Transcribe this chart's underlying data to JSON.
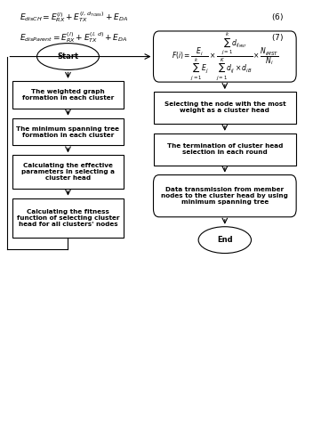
{
  "bg_color": "#ffffff",
  "eq1_text": "$E_{disCH} = E_{RX}^{(l)} + E_{TX}^{(l,\\, d_{TOBS})} + E_{DA}$",
  "eq1_num": "$(6)$",
  "eq2_text": "$E_{disParent} = E_{RX}^{(l)} + E_{TX}^{(l,\\, d)} + E_{DA}$",
  "eq2_num": "$(7)$",
  "start_label": "Start",
  "end_label": "End",
  "left_box1": "The weighted graph\nformation in each cluster",
  "left_box2": "The minimum spanning tree\nformation in each cluster",
  "left_box3": "Calculating the effective\nparameters in selecting a\ncluster head",
  "left_box4": "Calculating the fitness\nfunction of selecting cluster\nhead for all clusters' nodes",
  "formula": "$F(i) = \\dfrac{E_i}{\\sum_{j=1}^{k}E_j} \\times \\dfrac{\\sum_{j=1}^{k}d_{ij_{MST}}}{\\sum_{j=1}^{K}d_{ij} \\times d_{iB}} \\times \\dfrac{N_{iMST}}{N_i}$",
  "right_box1": "Selecting the node with the most\nweight as a cluster head",
  "right_box2": "The termination of cluster head\nselection in each round",
  "right_box3": "Data transmission from member\nnodes to the cluster head by using\nminimum spanning tree"
}
